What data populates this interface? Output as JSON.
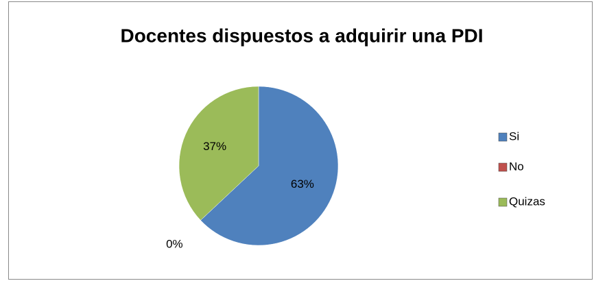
{
  "chart_data": {
    "type": "pie",
    "title": "Docentes dispuestos a adquirir una PDI",
    "categories": [
      "Si",
      "No",
      "Quizas"
    ],
    "values": [
      63,
      0,
      37
    ],
    "value_labels": [
      "63%",
      "0%",
      "37%"
    ],
    "colors": [
      "#4f81bd",
      "#c0504d",
      "#9bbb59"
    ],
    "legend": "right"
  }
}
